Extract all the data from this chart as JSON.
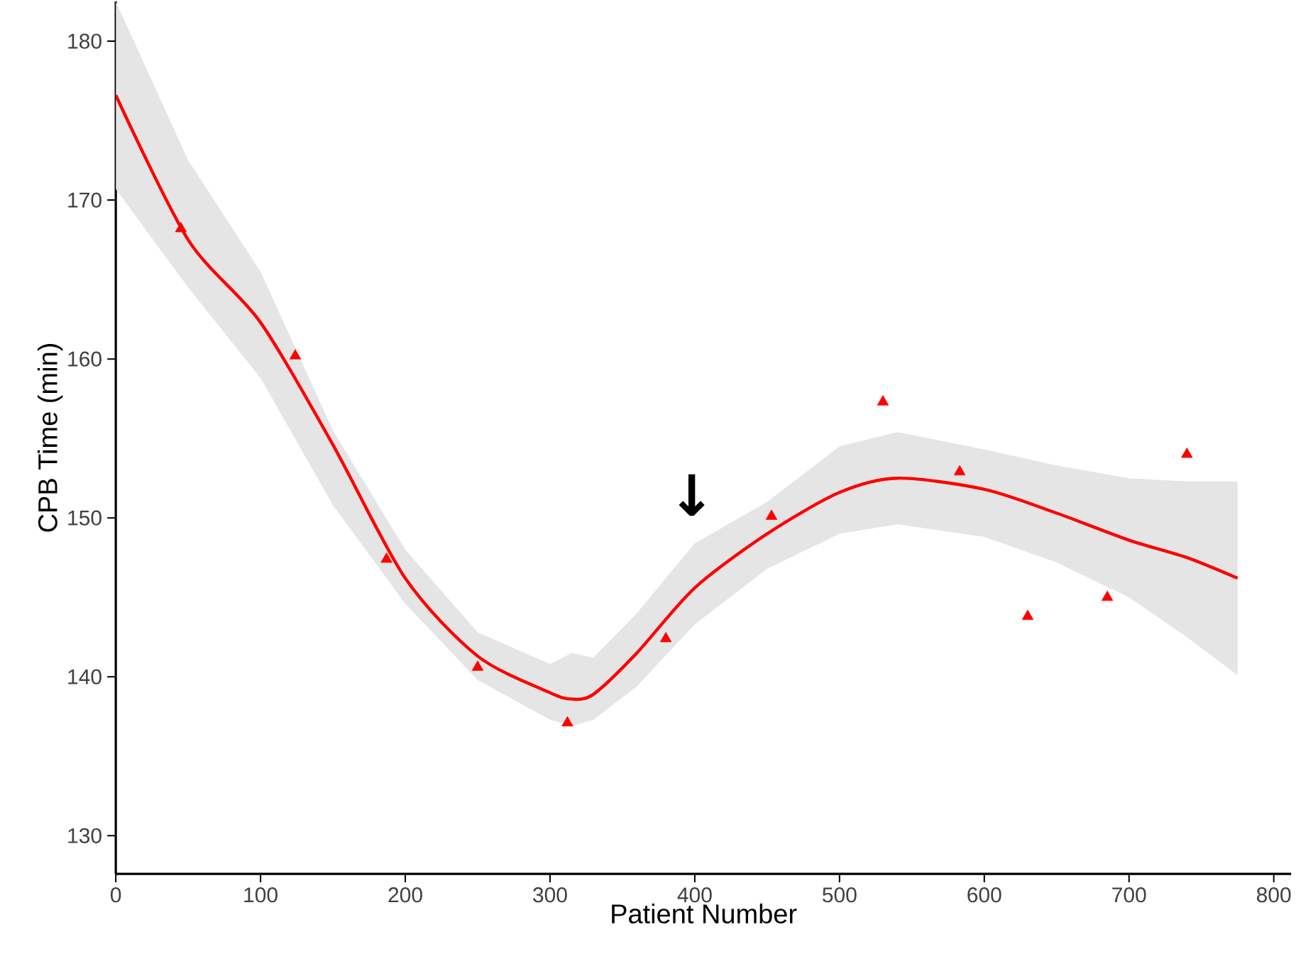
{
  "chart_data": {
    "type": "scatter",
    "xlabel": "Patient Number",
    "ylabel": "CPB Time (min)",
    "xlim": [
      0,
      812
    ],
    "ylim": [
      127.6,
      182.5
    ],
    "xticks": [
      0,
      100,
      200,
      300,
      400,
      500,
      600,
      700,
      800
    ],
    "yticks": [
      130,
      140,
      150,
      160,
      170,
      180
    ],
    "grid": false,
    "annotations": [
      "↓"
    ],
    "series": [
      {
        "type": "line",
        "color": "#ff0000",
        "x": [
          0,
          50,
          100,
          150,
          200,
          250,
          300,
          315,
          330,
          360,
          400,
          450,
          500,
          540,
          600,
          650,
          700,
          740,
          775
        ],
        "values": [
          176.6,
          167.5,
          162.3,
          154.6,
          146.2,
          141.3,
          139.0,
          138.6,
          138.9,
          141.5,
          145.6,
          149.0,
          151.6,
          152.5,
          151.8,
          150.3,
          148.6,
          147.5,
          146.2
        ],
        "lower": [
          170.7,
          164.5,
          158.8,
          150.8,
          144.6,
          139.8,
          137.3,
          136.9,
          137.3,
          139.4,
          143.3,
          146.8,
          149.0,
          149.6,
          148.8,
          147.2,
          145.0,
          142.5,
          140.1
        ],
        "upper": [
          182.5,
          172.5,
          165.5,
          155.5,
          148.0,
          142.8,
          140.8,
          141.5,
          141.2,
          144.0,
          148.4,
          151.0,
          154.5,
          155.4,
          154.3,
          153.3,
          152.5,
          152.3,
          152.3
        ]
      },
      {
        "marker": "triangle",
        "color": "#ff0000",
        "x": [
          45,
          124,
          187,
          250,
          312,
          380,
          453,
          530,
          583,
          630,
          685,
          740
        ],
        "values": [
          168.2,
          160.2,
          147.4,
          140.6,
          137.1,
          142.4,
          150.1,
          157.3,
          152.9,
          143.8,
          145.0,
          154.0
        ]
      }
    ]
  }
}
